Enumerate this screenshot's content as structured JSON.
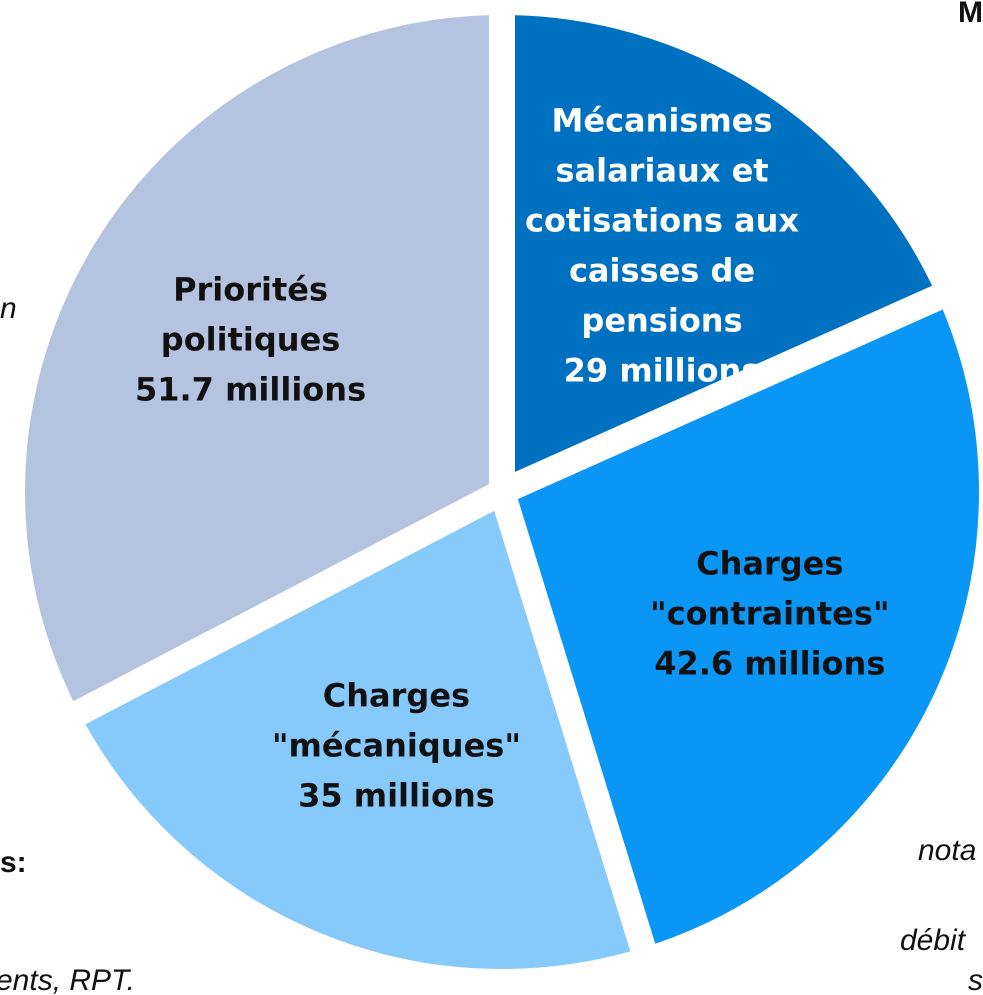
{
  "chart_data": {
    "type": "pie",
    "categories": [
      [
        "Mécanismes",
        "salariaux et",
        "cotisations aux",
        "caisses de",
        "pensions"
      ],
      [
        "Charges",
        "\"contraintes\""
      ],
      [
        "Charges",
        "\"mécaniques\""
      ],
      [
        "Priorités",
        "politiques"
      ]
    ],
    "values": [
      29,
      42.6,
      35,
      51.7
    ],
    "value_labels": [
      "29 millions",
      "42.6 millions",
      "35 millions",
      "51.7 millions"
    ],
    "colors": [
      "#0070c0",
      "#0a96f5",
      "#86c9fb",
      "#b4c3df"
    ],
    "label_colors": [
      "#ffffff",
      "#111111",
      "#111111",
      "#111111"
    ],
    "cropped_text": [
      "M",
      "n",
      "s:",
      "ents, RPT.",
      "nota",
      "débit",
      "s"
    ]
  }
}
